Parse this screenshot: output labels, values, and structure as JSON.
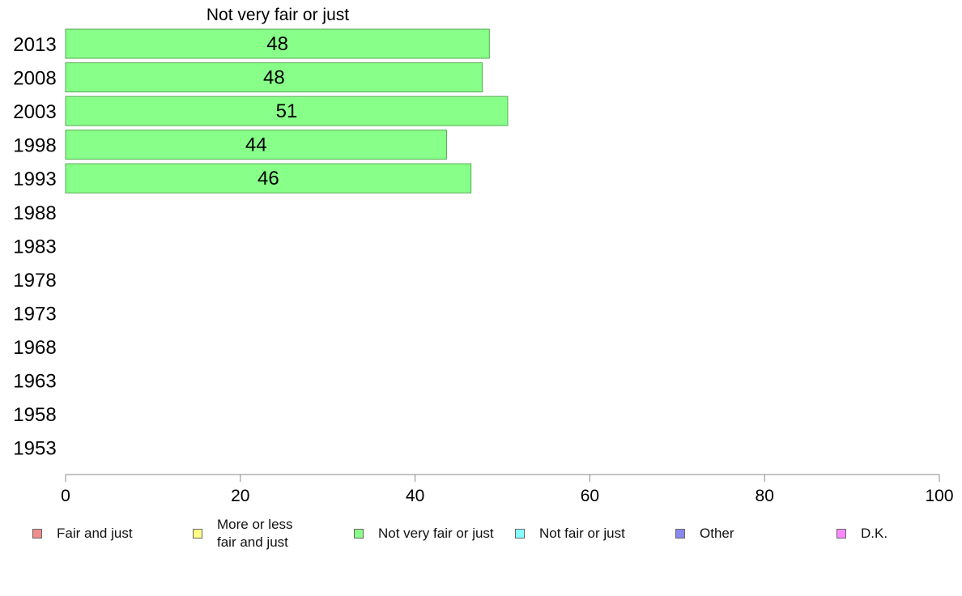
{
  "chart_data": {
    "type": "bar",
    "orientation": "horizontal",
    "title": "Not very fair or just",
    "categories": [
      "2013",
      "2008",
      "2003",
      "1998",
      "1993",
      "1988",
      "1983",
      "1978",
      "1973",
      "1968",
      "1963",
      "1958",
      "1953"
    ],
    "series": [
      {
        "name": "Not very fair or just",
        "values": [
          48.5,
          47.7,
          50.6,
          43.6,
          46.4,
          null,
          null,
          null,
          null,
          null,
          null,
          null,
          null
        ]
      }
    ],
    "data_labels": [
      "48",
      "48",
      "51",
      "44",
      "46",
      "",
      "",
      "",
      "",
      "",
      "",
      "",
      ""
    ],
    "xlim": [
      0,
      100
    ],
    "xticks": [
      "0",
      "20",
      "40",
      "60",
      "80",
      "100"
    ],
    "grid": false,
    "legend_position": "bottom",
    "bar_color": "#88ff88"
  },
  "legend": {
    "items": [
      {
        "label": "Fair and just",
        "color": "#f28b8b"
      },
      {
        "label": "More or less\nfair and just",
        "color": "#ffff88"
      },
      {
        "label": "Not very fair or just",
        "color": "#88ff88"
      },
      {
        "label": "Not fair or just",
        "color": "#88ffff"
      },
      {
        "label": "Other",
        "color": "#8888ee"
      },
      {
        "label": "D.K.",
        "color": "#ff88ff"
      }
    ]
  }
}
